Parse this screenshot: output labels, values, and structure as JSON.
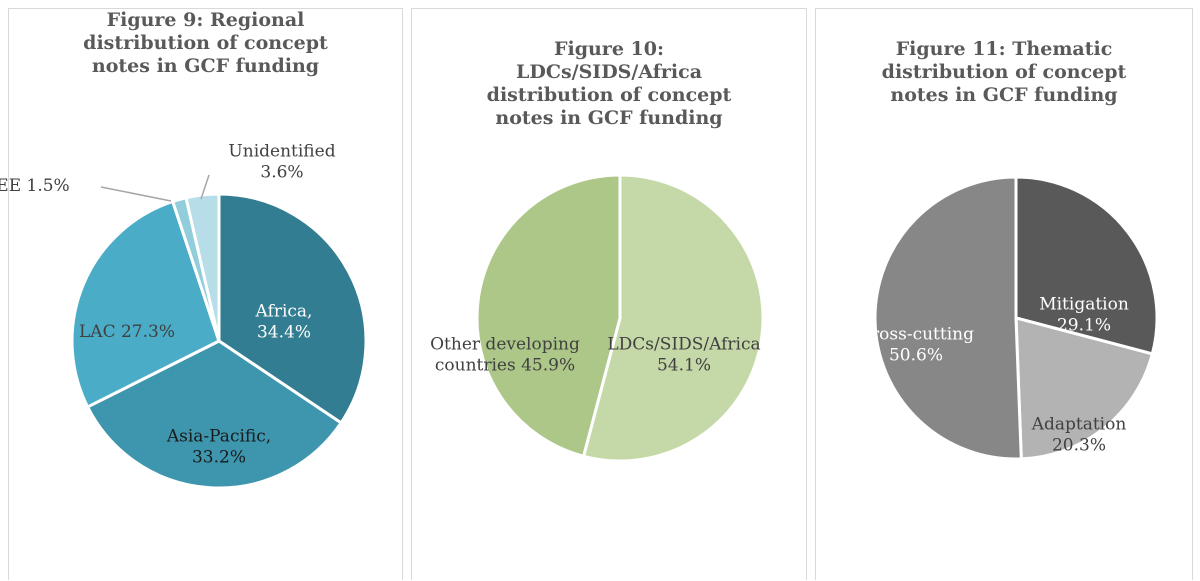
{
  "chart_data": [
    {
      "type": "pie",
      "title": "Figure 9:  Regional distribution of concept notes in GCF funding",
      "title_lines": [
        "Figure 9:  Regional",
        "distribution of concept",
        "notes in GCF funding"
      ],
      "slices": [
        {
          "name": "Africa",
          "value": 34.4,
          "color": "#327d91",
          "label_lines": [
            "Africa,",
            "34.4%"
          ],
          "label_color": "#ffffff"
        },
        {
          "name": "Asia-Pacific",
          "value": 33.2,
          "color": "#3d95ae",
          "label_lines": [
            "Asia-Pacific,",
            "33.2%"
          ],
          "label_color": "#1a1a1a"
        },
        {
          "name": "LAC",
          "value": 27.3,
          "color": "#4aacc6",
          "label_lines": [
            "LAC 27.3%"
          ],
          "label_color": "#404040"
        },
        {
          "name": "EE",
          "value": 1.5,
          "color": "#92cddc",
          "label_lines": [
            "EE 1.5%"
          ],
          "label_color": "#404040"
        },
        {
          "name": "Unidentified",
          "value": 3.6,
          "color": "#b7dde8",
          "label_lines": [
            "Unidentified",
            "3.6%"
          ],
          "label_color": "#404040"
        }
      ]
    },
    {
      "type": "pie",
      "title": "Figure 10: LDCs/SIDS/Africa distribution of concept notes in GCF funding",
      "title_lines": [
        "Figure 10:",
        "LDCs/SIDS/Africa",
        "distribution of concept",
        "notes in GCF funding"
      ],
      "slices": [
        {
          "name": "LDCs/SIDS/Africa",
          "value": 54.1,
          "color": "#c5d8a8",
          "label_lines": [
            "LDCs/SIDS/Africa",
            "54.1%"
          ],
          "label_color": "#404040"
        },
        {
          "name": "Other developing countries",
          "value": 45.9,
          "color": "#acc788",
          "label_lines": [
            "Other developing",
            "countries 45.9%"
          ],
          "label_color": "#404040"
        }
      ]
    },
    {
      "type": "pie",
      "title": "Figure 11:  Thematic distribution of concept notes in GCF funding",
      "title_lines": [
        "Figure 11:  Thematic",
        "distribution of concept",
        "notes in GCF funding"
      ],
      "slices": [
        {
          "name": "Mitigation",
          "value": 29.1,
          "color": "#595959",
          "label_lines": [
            "Mitigation",
            "29.1%"
          ],
          "label_color": "#ffffff"
        },
        {
          "name": "Adaptation",
          "value": 20.3,
          "color": "#b3b3b3",
          "label_lines": [
            "Adaptation",
            "20.3%"
          ],
          "label_color": "#404040"
        },
        {
          "name": "Cross-cutting",
          "value": 50.6,
          "color": "#878787",
          "label_lines": [
            "Cross-cutting",
            "50.6%"
          ],
          "label_color": "#ffffff"
        }
      ]
    }
  ]
}
